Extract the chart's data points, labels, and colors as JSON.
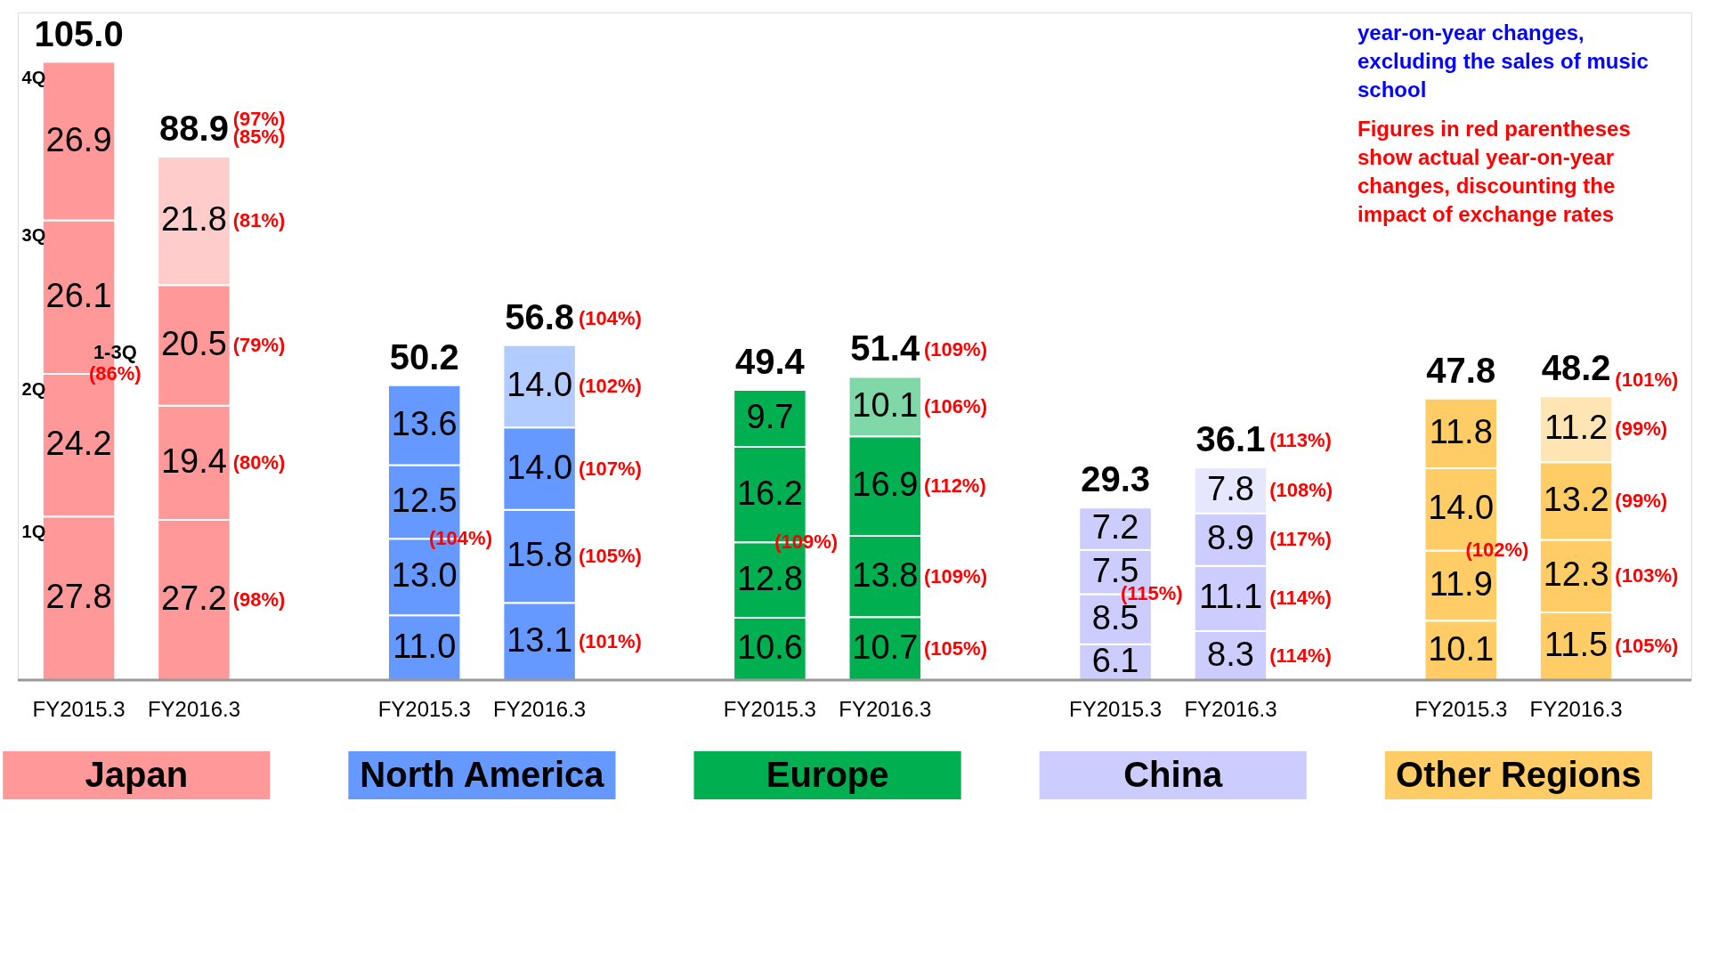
{
  "chart_data": {
    "type": "bar",
    "stacked": true,
    "categories": [
      "FY2015.3",
      "FY2016.3",
      null,
      "FY2015.3",
      "FY2016.3",
      null,
      "FY2015.3",
      "FY2016.3",
      null,
      "FY2015.3",
      "FY2016.3",
      null,
      "FY2015.3",
      "FY2016.3"
    ],
    "series": [
      {
        "name": "1Q",
        "colors": [
          "#ff9999",
          "#ff9999",
          null,
          "#6699ff",
          "#6699ff",
          null,
          "#00b050",
          "#00b050",
          null,
          "#ccccff",
          "#ccccff",
          null,
          "#ffcc66",
          "#ffcc66"
        ],
        "values": [
          27.8,
          27.2,
          null,
          11.0,
          13.1,
          null,
          10.6,
          10.7,
          null,
          6.1,
          8.3,
          null,
          10.1,
          11.5
        ],
        "value_labels": [
          "27.8",
          "27.2",
          null,
          "11.0",
          "13.1",
          null,
          "10.6",
          "10.7",
          null,
          "6.1",
          "8.3",
          null,
          "10.1",
          "11.5"
        ]
      },
      {
        "name": "2Q",
        "colors": [
          "#ff9999",
          "#ff9999",
          null,
          "#6699ff",
          "#6699ff",
          null,
          "#00b050",
          "#00b050",
          null,
          "#ccccff",
          "#ccccff",
          null,
          "#ffcc66",
          "#ffcc66"
        ],
        "values": [
          24.2,
          19.4,
          null,
          13.0,
          15.8,
          null,
          12.8,
          13.8,
          null,
          8.5,
          11.1,
          null,
          11.9,
          12.3
        ],
        "value_labels": [
          "24.2",
          "19.4",
          null,
          "13.0",
          "15.8",
          null,
          "12.8",
          "13.8",
          null,
          "8.5",
          "11.1",
          null,
          "11.9",
          "12.3"
        ]
      },
      {
        "name": "3Q",
        "colors": [
          "#ff9999",
          "#ff9999",
          null,
          "#6699ff",
          "#6699ff",
          null,
          "#00b050",
          "#00b050",
          null,
          "#ccccff",
          "#ccccff",
          null,
          "#ffcc66",
          "#ffcc66"
        ],
        "values": [
          26.1,
          20.5,
          null,
          12.5,
          14.0,
          null,
          16.2,
          16.9,
          null,
          7.5,
          8.9,
          null,
          14.0,
          13.2
        ],
        "value_labels": [
          "26.1",
          "20.5",
          null,
          "12.5",
          "14.0",
          null,
          "16.2",
          "16.9",
          null,
          "7.5",
          "8.9",
          null,
          "14.0",
          "13.2"
        ]
      },
      {
        "name": "4Q",
        "colors": [
          "#ff9999",
          "#ffcccc",
          null,
          "#6699ff",
          "#b3ccff",
          null,
          "#00b050",
          "#80d8a8",
          null,
          "#ccccff",
          "#e6e6ff",
          null,
          "#ffcc66",
          "#ffe5b3"
        ],
        "values": [
          26.9,
          21.8,
          null,
          13.6,
          14.0,
          null,
          9.7,
          10.1,
          null,
          7.2,
          7.8,
          null,
          11.8,
          11.2
        ],
        "value_labels": [
          "26.9",
          "21.8",
          null,
          "13.6",
          "14.0",
          null,
          "9.7",
          "10.1",
          null,
          "7.2",
          "7.8",
          null,
          "11.8",
          "11.2"
        ]
      }
    ],
    "totals": [
      "105.0",
      "88.9",
      null,
      "50.2",
      "56.8",
      null,
      "49.4",
      "51.4",
      null,
      "29.3",
      "36.1",
      null,
      "47.8",
      "48.2"
    ],
    "annotations": [
      "year-on-year changes, excluding the sales of music school",
      "Figures in red parentheses show actual year-on-year changes, discounting the impact of exchange rates",
      "Japan",
      "North America",
      "Europe",
      "China",
      "Other Regions",
      "1-3Q",
      "(86%)",
      "(98%)",
      "(80%)",
      "(79%)",
      "(81%)",
      "(85%)",
      "(97%)",
      "(104%)",
      "(101%)",
      "(105%)",
      "(107%)",
      "(102%)",
      "(104%)",
      "(109%)",
      "(105%)",
      "(109%)",
      "(112%)",
      "(106%)",
      "(109%)",
      "(115%)",
      "(114%)",
      "(114%)",
      "(117%)",
      "(108%)",
      "(113%)",
      "(102%)",
      "(105%)",
      "(103%)",
      "(99%)",
      "(99%)",
      "(101%)"
    ]
  }
}
